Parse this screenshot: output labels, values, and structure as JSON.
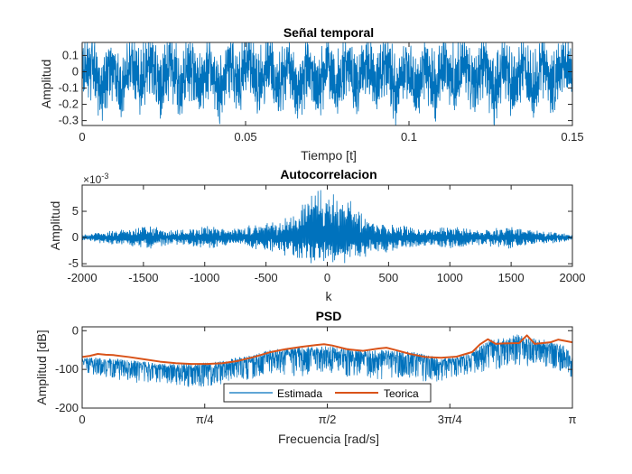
{
  "chart_data": [
    {
      "type": "line",
      "title": "Señal temporal",
      "xlabel": "Tiempo [t]",
      "ylabel": "Amplitud",
      "xlim": [
        0,
        0.15
      ],
      "ylim": [
        -0.33,
        0.18
      ],
      "xticks": [
        0,
        0.05,
        0.1,
        0.15
      ],
      "xtick_labels": [
        "0",
        "0.05",
        "0.1",
        "0.15"
      ],
      "yticks": [
        0.1,
        0,
        -0.1,
        -0.2,
        -0.3
      ],
      "ytick_labels": [
        "0.1",
        "0",
        "-0.1",
        "-0.2",
        "-0.3"
      ],
      "series": [
        {
          "color": "#0072BD",
          "x": [
            0,
            0.003,
            0.006,
            0.009,
            0.012,
            0.015,
            0.018,
            0.021,
            0.024,
            0.027,
            0.03,
            0.033,
            0.036,
            0.039,
            0.042,
            0.045,
            0.048,
            0.051,
            0.054,
            0.057,
            0.06,
            0.063,
            0.066,
            0.069,
            0.072,
            0.075,
            0.078,
            0.081,
            0.084,
            0.087,
            0.09,
            0.093,
            0.096,
            0.099,
            0.102,
            0.105,
            0.108,
            0.111,
            0.114,
            0.117,
            0.12,
            0.123,
            0.126,
            0.129,
            0.132,
            0.135,
            0.138,
            0.141,
            0.144,
            0.147,
            0.15
          ],
          "y": [
            -0.02,
            0.15,
            -0.25,
            0.14,
            -0.28,
            0.16,
            -0.22,
            0.15,
            -0.3,
            0.13,
            -0.26,
            0.16,
            -0.24,
            0.14,
            -0.29,
            0.15,
            -0.21,
            0.16,
            -0.27,
            0.12,
            -0.25,
            0.15,
            -0.3,
            0.14,
            -0.23,
            0.16,
            -0.28,
            0.13,
            -0.26,
            0.15,
            -0.22,
            0.16,
            -0.29,
            0.14,
            -0.25,
            0.15,
            -0.3,
            0.16,
            -0.24,
            0.13,
            -0.27,
            0.15,
            -0.32,
            0.16,
            -0.23,
            0.14,
            -0.29,
            0.15,
            -0.26,
            0.13,
            -0.05
          ]
        }
      ]
    },
    {
      "type": "line",
      "title": "Autocorrelacion",
      "xlabel": "k",
      "ylabel": "Amplitud",
      "exponent_label": "×10",
      "exponent_power": "-3",
      "xlim": [
        -2000,
        2000
      ],
      "ylim": [
        -5.5,
        10
      ],
      "xticks": [
        -2000,
        -1500,
        -1000,
        -500,
        0,
        500,
        1000,
        1500,
        2000
      ],
      "xtick_labels": [
        "-2000",
        "-1500",
        "-1000",
        "-500",
        "0",
        "500",
        "1000",
        "1500",
        "2000"
      ],
      "yticks": [
        5,
        0,
        -5
      ],
      "ytick_labels": [
        "5",
        "0",
        "-5"
      ],
      "series": [
        {
          "color": "#0072BD",
          "x": [
            -2000,
            -1900,
            -1800,
            -1700,
            -1600,
            -1500,
            -1400,
            -1300,
            -1200,
            -1100,
            -1000,
            -900,
            -800,
            -700,
            -600,
            -500,
            -400,
            -300,
            -200,
            -150,
            -100,
            -50,
            0,
            50,
            100,
            150,
            200,
            300,
            400,
            500,
            600,
            700,
            800,
            900,
            1000,
            1100,
            1200,
            1300,
            1400,
            1500,
            1600,
            1700,
            1800,
            1900,
            2000
          ],
          "upper": [
            0.5,
            1.0,
            1.2,
            1.5,
            1.8,
            2.3,
            2.0,
            1.6,
            1.5,
            1.9,
            2.4,
            2.0,
            1.6,
            2.0,
            2.6,
            2.8,
            3.2,
            4.5,
            7.0,
            8.5,
            9.5,
            9.0,
            9.8,
            9.0,
            9.5,
            8.5,
            7.0,
            4.5,
            3.2,
            2.8,
            2.6,
            2.0,
            1.6,
            2.0,
            2.4,
            1.9,
            1.5,
            1.6,
            2.0,
            2.3,
            1.8,
            1.5,
            1.2,
            1.0,
            0.5
          ],
          "lower": [
            -0.5,
            -1.0,
            -1.2,
            -1.5,
            -1.8,
            -2.3,
            -2.0,
            -1.6,
            -1.5,
            -1.9,
            -2.4,
            -2.0,
            -1.6,
            -2.0,
            -2.6,
            -2.8,
            -3.2,
            -3.8,
            -4.5,
            -5.0,
            -5.2,
            -4.8,
            -5.3,
            -4.8,
            -5.2,
            -5.0,
            -4.5,
            -3.8,
            -3.2,
            -2.8,
            -2.6,
            -2.0,
            -1.6,
            -2.0,
            -2.4,
            -1.9,
            -1.5,
            -1.6,
            -2.0,
            -2.3,
            -1.8,
            -1.5,
            -1.2,
            -1.0,
            -0.5
          ]
        }
      ]
    },
    {
      "type": "line",
      "title": "PSD",
      "xlabel": "Frecuencia [rad/s]",
      "ylabel": "Amplitud [dB]",
      "xlim": [
        0,
        3.14159
      ],
      "ylim": [
        -200,
        10
      ],
      "xticks": [
        0,
        0.7854,
        1.5708,
        2.3562,
        3.14159
      ],
      "xtick_labels": [
        "0",
        "π/4",
        "π/2",
        "3π/4",
        "π"
      ],
      "yticks": [
        0,
        -100,
        -200
      ],
      "ytick_labels": [
        "0",
        "-100",
        "-200"
      ],
      "legend": {
        "position": "bottom-center",
        "entries": [
          "Estimada",
          "Teorica"
        ]
      },
      "series": [
        {
          "name": "Estimada",
          "color": "#0072BD",
          "x": [
            0,
            0.1,
            0.2,
            0.3,
            0.4,
            0.5,
            0.6,
            0.7,
            0.8,
            0.9,
            1.0,
            1.1,
            1.2,
            1.3,
            1.4,
            1.5,
            1.6,
            1.7,
            1.8,
            1.9,
            2.0,
            2.1,
            2.2,
            2.3,
            2.4,
            2.5,
            2.6,
            2.7,
            2.8,
            2.9,
            3.0,
            3.1,
            3.14159
          ],
          "upper": [
            -70,
            -70,
            -72,
            -75,
            -80,
            -85,
            -85,
            -85,
            -82,
            -78,
            -68,
            -60,
            -50,
            -45,
            -42,
            -40,
            -40,
            -45,
            -50,
            -50,
            -48,
            -52,
            -62,
            -70,
            -68,
            -55,
            -25,
            -18,
            -8,
            -20,
            -25,
            -40,
            -70
          ],
          "lower": [
            -110,
            -115,
            -125,
            -130,
            -140,
            -135,
            -140,
            -150,
            -145,
            -140,
            -130,
            -125,
            -110,
            -115,
            -120,
            -105,
            -110,
            -120,
            -115,
            -130,
            -120,
            -130,
            -140,
            -130,
            -120,
            -110,
            -105,
            -100,
            -95,
            -90,
            -95,
            -110,
            -125
          ]
        },
        {
          "name": "Teorica",
          "color": "#D95319",
          "x": [
            0,
            0.05,
            0.1,
            0.15,
            0.2,
            0.3,
            0.4,
            0.5,
            0.6,
            0.7,
            0.8,
            0.9,
            1.0,
            1.1,
            1.2,
            1.3,
            1.4,
            1.5,
            1.55,
            1.6,
            1.7,
            1.8,
            1.9,
            1.95,
            2.0,
            2.1,
            2.2,
            2.3,
            2.4,
            2.5,
            2.55,
            2.6,
            2.65,
            2.7,
            2.8,
            2.85,
            2.9,
            3.0,
            3.05,
            3.14159
          ],
          "y": [
            -68,
            -65,
            -60,
            -62,
            -63,
            -68,
            -74,
            -80,
            -84,
            -86,
            -86,
            -84,
            -78,
            -68,
            -56,
            -48,
            -42,
            -37,
            -35,
            -38,
            -48,
            -52,
            -46,
            -44,
            -49,
            -60,
            -68,
            -70,
            -67,
            -55,
            -35,
            -22,
            -34,
            -33,
            -32,
            -12,
            -34,
            -30,
            -23,
            -30
          ]
        }
      ]
    }
  ]
}
